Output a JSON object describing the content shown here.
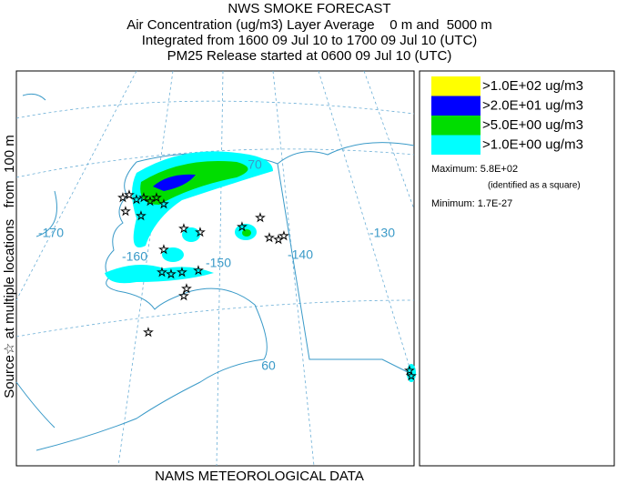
{
  "header": {
    "title": "NWS SMOKE FORECAST",
    "lines": [
      "Air Concentration (ug/m3) Layer Average    0 m and  5000 m",
      "Integrated from 1600 09 Jul 10 to 1700 09 Jul 10 (UTC)",
      "PM25 Release started at 0600 09 Jul 10 (UTC)"
    ]
  },
  "side_label": "Source☆ at multiple locations   from  100 m",
  "legend": {
    "items": [
      {
        "label": ">1.0E+02 ug/m3",
        "color": "#ffff00"
      },
      {
        "label": ">2.0E+01 ug/m3",
        "color": "#0000ff"
      },
      {
        "label": ">5.0E+00 ug/m3",
        "color": "#00dd00"
      },
      {
        "label": ">1.0E+00 ug/m3",
        "color": "#00ffff"
      }
    ],
    "maximum": "Maximum: 5.8E+02",
    "max_note": "(identified as a square)",
    "minimum": "Minimum: 1.7E-27"
  },
  "map": {
    "labels": [
      "-170",
      "-160",
      "-150",
      "-140",
      "-130",
      "70",
      "60"
    ]
  },
  "footer": "NAMS METEOROLOGICAL DATA"
}
